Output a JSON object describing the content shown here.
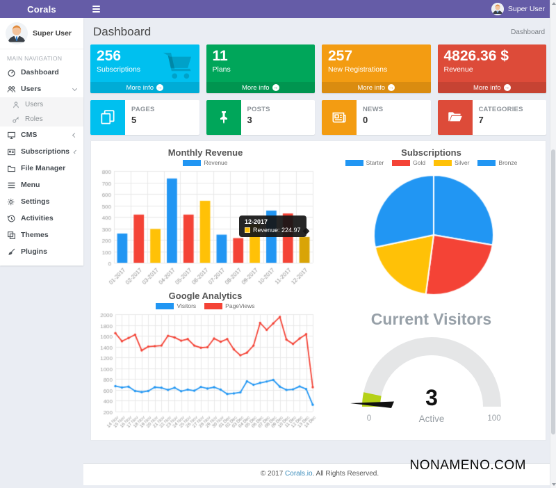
{
  "navbar": {
    "brand": "Corals",
    "user": "Super User"
  },
  "sidebar": {
    "user": "Super User",
    "section_label": "MAIN NAVIGATION",
    "items": [
      {
        "label": "Dashboard"
      },
      {
        "label": "Users",
        "chevron": "down"
      },
      {
        "label": "Users",
        "sub": true
      },
      {
        "label": "Roles",
        "sub": true
      },
      {
        "label": "CMS",
        "chevron": "left"
      },
      {
        "label": "Subscriptions",
        "chevron": "left"
      },
      {
        "label": "File Manager"
      },
      {
        "label": "Menu"
      },
      {
        "label": "Settings"
      },
      {
        "label": "Activities"
      },
      {
        "label": "Themes"
      },
      {
        "label": "Plugins"
      }
    ]
  },
  "header": {
    "title": "Dashboard",
    "breadcrumb": "Dashboard"
  },
  "theme_colors": {
    "navbar": "#655CA7",
    "aqua": "#00C0EF",
    "green": "#00A65A",
    "yellow": "#F39C12",
    "red": "#DD4B39",
    "link": "#3C8DBC"
  },
  "stat_boxes": [
    {
      "value": "256",
      "label": "Subscriptions",
      "more": "More info",
      "color": "#00C0EF",
      "icon": "shopping-cart"
    },
    {
      "value": "11",
      "label": "Plans",
      "more": "More info",
      "color": "#00A65A"
    },
    {
      "value": "257",
      "label": "New Registrations",
      "more": "More info",
      "color": "#F39C12"
    },
    {
      "value": "4826.36 $",
      "label": "Revenue",
      "more": "More info",
      "color": "#DD4B39"
    }
  ],
  "info_boxes": [
    {
      "label": "PAGES",
      "value": "5",
      "color": "#00C0EF",
      "icon": "pages"
    },
    {
      "label": "POSTS",
      "value": "3",
      "color": "#00A65A",
      "icon": "thumbtack"
    },
    {
      "label": "NEWS",
      "value": "0",
      "color": "#F39C12",
      "icon": "newspaper"
    },
    {
      "label": "CATEGORIES",
      "value": "7",
      "color": "#DD4B39",
      "icon": "folder-open"
    }
  ],
  "chart_data": [
    {
      "type": "bar",
      "title": "Monthly Revenue",
      "legend": [
        "Revenue"
      ],
      "legend_color": "#2196F3",
      "categories": [
        "01-2017",
        "02-2017",
        "03-2017",
        "04-2017",
        "05-2017",
        "06-2017",
        "07-2017",
        "08-2017",
        "09-2017",
        "10-2017",
        "11-2017",
        "12-2017"
      ],
      "values": [
        255,
        420,
        295,
        735,
        420,
        540,
        245,
        215,
        335,
        455,
        430,
        224.97
      ],
      "palette": [
        "#2196F3",
        "#F44336",
        "#FFC107"
      ],
      "hover_index": 11,
      "hover_color": "#D9A406",
      "ylim": [
        0,
        800
      ],
      "ystep": 100,
      "grid": true,
      "tooltip": {
        "title": "12-2017",
        "label": "Revenue: 224.97",
        "swatch": "#FFC107"
      }
    },
    {
      "type": "pie",
      "title": "Subscriptions",
      "legend": [
        "Starter",
        "Gold",
        "Silver",
        "Bronze"
      ],
      "values": [
        27.7,
        24.4,
        19.6,
        28.3
      ],
      "unit": "percent",
      "colors": [
        "#2196F3",
        "#F44336",
        "#FFC107",
        "#2196F3"
      ],
      "legend_position": "top"
    },
    {
      "type": "line",
      "title": "Google Analytics",
      "x": [
        "14 Nov",
        "15 Nov",
        "16 Nov",
        "17 Nov",
        "18 Nov",
        "19 Nov",
        "20 Nov",
        "21 Nov",
        "22 Nov",
        "23 Nov",
        "24 Nov",
        "25 Nov",
        "26 Nov",
        "27 Nov",
        "28 Nov",
        "29 Nov",
        "30 Nov",
        "01 Dec",
        "02 Dec",
        "03 Dec",
        "04 Dec",
        "05 Dec",
        "06 Dec",
        "07 Dec",
        "08 Dec",
        "09 Dec",
        "10 Dec",
        "11 Dec",
        "12 Dec",
        "13 Dec",
        "14 Dec"
      ],
      "series": [
        {
          "name": "Visitors",
          "color": "#2196F3",
          "values": [
            670,
            645,
            660,
            580,
            560,
            580,
            650,
            640,
            600,
            640,
            575,
            605,
            585,
            655,
            625,
            650,
            605,
            525,
            535,
            555,
            760,
            695,
            730,
            755,
            785,
            660,
            600,
            610,
            665,
            615,
            325
          ]
        },
        {
          "name": "PageViews",
          "color": "#F44336",
          "values": [
            1650,
            1500,
            1560,
            1620,
            1330,
            1400,
            1410,
            1420,
            1600,
            1570,
            1510,
            1540,
            1420,
            1380,
            1390,
            1550,
            1490,
            1540,
            1350,
            1240,
            1290,
            1420,
            1840,
            1710,
            1830,
            1950,
            1530,
            1450,
            1550,
            1630,
            650
          ]
        }
      ],
      "ylim": [
        200,
        2000
      ],
      "ystep": 200,
      "grid": true
    },
    {
      "type": "gauge",
      "title": "Current Visitors",
      "value": 3,
      "min": 0,
      "max": 100,
      "label": "Active",
      "track_color": "#E5E6E7",
      "fill_color": "#B5D117"
    }
  ],
  "footer": {
    "copyright_prefix": "© 2017 ",
    "link": "Corals.io",
    "copyright_suffix": ". All Rights Reserved."
  },
  "watermark": "NONAMENO.COM"
}
